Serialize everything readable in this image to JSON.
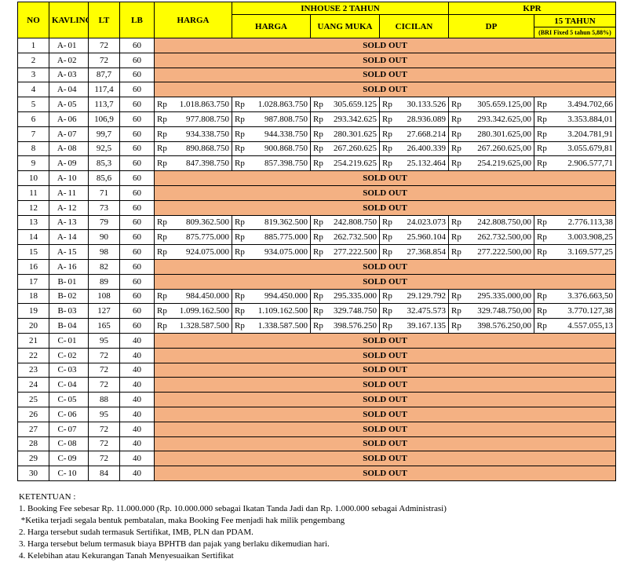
{
  "table": {
    "header": {
      "no": "NO",
      "kavling": "KAVLING",
      "lt": "LT",
      "lb": "LB",
      "harga": "HARGA",
      "inhouse": "INHOUSE 2 TAHUN",
      "inhouse_harga": "HARGA",
      "uang_muka": "UANG MUKA",
      "cicilan": "CICILAN",
      "kpr": "KPR",
      "dp": "DP",
      "tenor": "15 TAHUN",
      "bunga": "(BRI Fixed 5 tahun 5,88%)"
    },
    "currency": "Rp",
    "rows": [
      [
        "1",
        "A-",
        "01",
        "72",
        "60",
        "SOLD OUT"
      ],
      [
        "2",
        "A-",
        "02",
        "72",
        "60",
        "SOLD OUT"
      ],
      [
        "3",
        "A-",
        "03",
        "87,7",
        "60",
        "SOLD OUT"
      ],
      [
        "4",
        "A-",
        "04",
        "117,4",
        "60",
        "SOLD OUT"
      ],
      [
        "5",
        "A-",
        "05",
        "113,7",
        "60",
        "1.018.863.750",
        "1.028.863.750",
        "305.659.125",
        "30.133.526",
        "305.659.125,00",
        "3.494.702,66"
      ],
      [
        "6",
        "A-",
        "06",
        "106,9",
        "60",
        "977.808.750",
        "987.808.750",
        "293.342.625",
        "28.936.089",
        "293.342.625,00",
        "3.353.884,01"
      ],
      [
        "7",
        "A-",
        "07",
        "99,7",
        "60",
        "934.338.750",
        "944.338.750",
        "280.301.625",
        "27.668.214",
        "280.301.625,00",
        "3.204.781,91"
      ],
      [
        "8",
        "A-",
        "08",
        "92,5",
        "60",
        "890.868.750",
        "900.868.750",
        "267.260.625",
        "26.400.339",
        "267.260.625,00",
        "3.055.679,81"
      ],
      [
        "9",
        "A-",
        "09",
        "85,3",
        "60",
        "847.398.750",
        "857.398.750",
        "254.219.625",
        "25.132.464",
        "254.219.625,00",
        "2.906.577,71"
      ],
      [
        "10",
        "A-",
        "10",
        "85,6",
        "60",
        "SOLD OUT"
      ],
      [
        "11",
        "A-",
        "11",
        "71",
        "60",
        "SOLD OUT"
      ],
      [
        "12",
        "A-",
        "12",
        "73",
        "60",
        "SOLD OUT"
      ],
      [
        "13",
        "A-",
        "13",
        "79",
        "60",
        "809.362.500",
        "819.362.500",
        "242.808.750",
        "24.023.073",
        "242.808.750,00",
        "2.776.113,38"
      ],
      [
        "14",
        "A-",
        "14",
        "90",
        "60",
        "875.775.000",
        "885.775.000",
        "262.732.500",
        "25.960.104",
        "262.732.500,00",
        "3.003.908,25"
      ],
      [
        "15",
        "A-",
        "15",
        "98",
        "60",
        "924.075.000",
        "934.075.000",
        "277.222.500",
        "27.368.854",
        "277.222.500,00",
        "3.169.577,25"
      ],
      [
        "16",
        "A-",
        "16",
        "82",
        "60",
        "SOLD OUT"
      ],
      [
        "17",
        "B-",
        "01",
        "89",
        "60",
        "SOLD OUT"
      ],
      [
        "18",
        "B-",
        "02",
        "108",
        "60",
        "984.450.000",
        "994.450.000",
        "295.335.000",
        "29.129.792",
        "295.335.000,00",
        "3.376.663,50"
      ],
      [
        "19",
        "B-",
        "03",
        "127",
        "60",
        "1.099.162.500",
        "1.109.162.500",
        "329.748.750",
        "32.475.573",
        "329.748.750,00",
        "3.770.127,38"
      ],
      [
        "20",
        "B-",
        "04",
        "165",
        "60",
        "1.328.587.500",
        "1.338.587.500",
        "398.576.250",
        "39.167.135",
        "398.576.250,00",
        "4.557.055,13"
      ],
      [
        "21",
        "C-",
        "01",
        "95",
        "40",
        "SOLD OUT"
      ],
      [
        "22",
        "C-",
        "02",
        "72",
        "40",
        "SOLD OUT"
      ],
      [
        "23",
        "C-",
        "03",
        "72",
        "40",
        "SOLD OUT"
      ],
      [
        "24",
        "C-",
        "04",
        "72",
        "40",
        "SOLD OUT"
      ],
      [
        "25",
        "C-",
        "05",
        "88",
        "40",
        "SOLD OUT"
      ],
      [
        "26",
        "C-",
        "06",
        "95",
        "40",
        "SOLD OUT"
      ],
      [
        "27",
        "C-",
        "07",
        "72",
        "40",
        "SOLD OUT"
      ],
      [
        "28",
        "C-",
        "08",
        "72",
        "40",
        "SOLD OUT"
      ],
      [
        "29",
        "C-",
        "09",
        "72",
        "40",
        "SOLD OUT"
      ],
      [
        "30",
        "C-",
        "10",
        "84",
        "40",
        "SOLD OUT"
      ]
    ]
  },
  "notes": {
    "title": "KETENTUAN :",
    "items": [
      "1. Booking Fee sebesar Rp. 11.000.000 (Rp. 10.000.000 sebagai Ikatan Tanda Jadi dan Rp. 1.000.000 sebagai Administrasi)",
      " *Ketika terjadi segala bentuk pembatalan, maka Booking Fee menjadi hak milik pengembang",
      "2. Harga tersebut sudah termasuk Sertifikat, IMB, PLN dan PDAM.",
      "3. Harga tersebut belum termasuk biaya BPHTB dan pajak yang berlaku dikemudian hari.",
      "4. Kelebihan atau Kekurangan Tanah Menyesuaikan Sertifikat"
    ]
  }
}
